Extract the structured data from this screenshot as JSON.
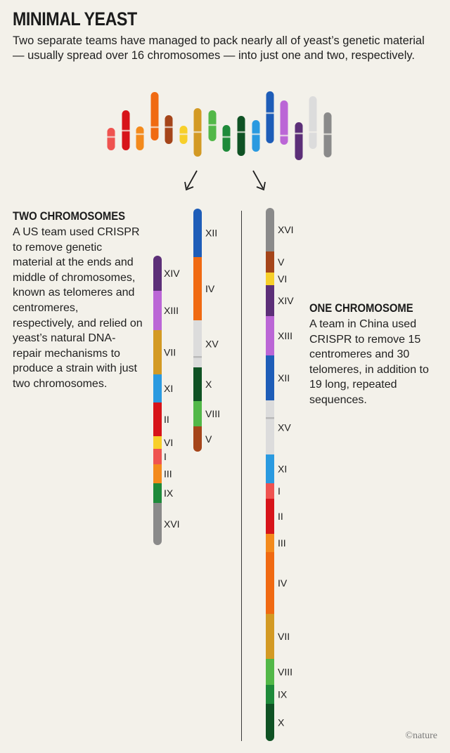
{
  "title": "MINIMAL YEAST",
  "subtitle": "Two separate teams have managed to pack nearly all of yeast’s genetic material — usually spread over 16 chromosomes — into just one and two, respectively.",
  "two_chromosomes": {
    "heading": "TWO CHROMOSOMES",
    "body": "A US team used CRISPR to remove genetic material at the ends and middle of chromosomes, known as telomeres and centromeres, respectively, and relied on yeast’s natural DNA-repair mechanisms to produce a strain with just two chromosomes."
  },
  "one_chromosome": {
    "heading": "ONE CHROMOSOME",
    "body": "A team in China used CRISPR to remove 15 centromeres and 30 telomeres, in addition to 19 long, repeated sequences."
  },
  "credit": "©nature",
  "colors": {
    "I": "#ef5350",
    "II": "#d7141a",
    "III": "#f38a1c",
    "IV": "#f06a12",
    "V": "#a5451a",
    "VI": "#f7cf2a",
    "VII": "#d39a24",
    "VIII": "#52b848",
    "IX": "#1e8a3a",
    "X": "#0f5224",
    "XI": "#2a9ae0",
    "XII": "#1e5db8",
    "XIII": "#bb66d6",
    "XIV": "#5c2f78",
    "XV": "#dcdcdc",
    "XVI": "#8a8a8a"
  },
  "top_chromosomes": [
    "I",
    "II",
    "III",
    "IV",
    "V",
    "VI",
    "VII",
    "VIII",
    "IX",
    "X",
    "XI",
    "XII",
    "XIII",
    "XIV",
    "XV",
    "XVI"
  ],
  "two_chrom_a": [
    "XIV",
    "XIII",
    "VII",
    "XI",
    "II",
    "VI",
    "I",
    "III",
    "IX",
    "XVI"
  ],
  "two_chrom_b": [
    "XII",
    "IV",
    "XV",
    "X",
    "VIII",
    "V"
  ],
  "one_chrom": [
    "XVI",
    "V",
    "VI",
    "XIV",
    "XIII",
    "XII",
    "XV",
    "XI",
    "I",
    "II",
    "III",
    "IV",
    "VII",
    "VIII",
    "IX",
    "X"
  ]
}
